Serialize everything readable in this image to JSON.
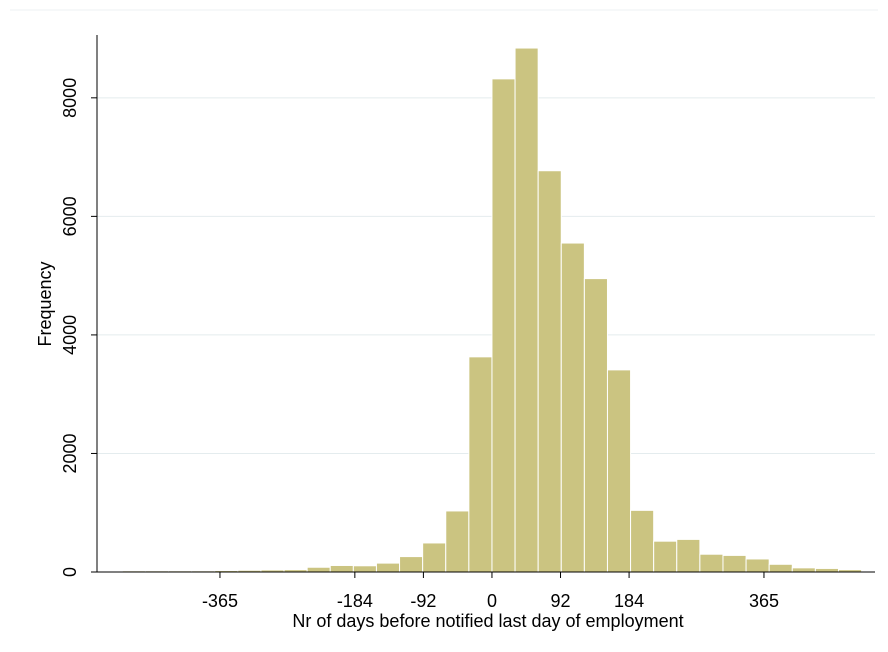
{
  "chart_data": {
    "type": "histogram",
    "xlabel": "Nr of days before notified last day of employment",
    "ylabel": "Frequency",
    "bins": [
      -496,
      -465,
      -434,
      -403,
      -372,
      -341,
      -310,
      -279,
      -248,
      -217,
      -186,
      -155,
      -124,
      -93,
      -62,
      -31,
      0,
      31,
      62,
      93,
      124,
      155,
      186,
      217,
      248,
      279,
      310,
      341,
      372,
      403,
      434,
      465,
      496
    ],
    "values": [
      20,
      20,
      20,
      20,
      25,
      30,
      35,
      40,
      80,
      110,
      105,
      150,
      260,
      490,
      1030,
      3630,
      8320,
      8840,
      6770,
      5550,
      4950,
      3410,
      1040,
      520,
      550,
      300,
      280,
      220,
      130,
      70,
      60,
      40
    ],
    "color": "#cbc481",
    "xlim": [
      -530,
      514
    ],
    "xticks": [
      -365,
      -184,
      -92,
      0,
      92,
      184,
      365
    ],
    "ylim": [
      0,
      9060
    ],
    "yticks": [
      0,
      2000,
      4000,
      6000,
      8000
    ],
    "grid": true
  }
}
